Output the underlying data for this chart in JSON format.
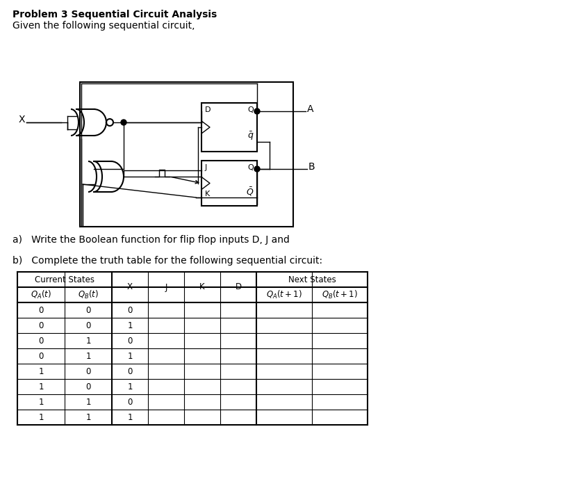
{
  "title": "Problem 3 Sequential Circuit Analysis",
  "subtitle": "Given the following sequential circuit,",
  "part_a": "a)   Write the Boolean function for flip flop inputs D, J and",
  "part_b": "b)   Complete the truth table for the following sequential circuit:",
  "table_data": [
    [
      "0",
      "0",
      "0",
      "",
      "",
      "",
      "",
      ""
    ],
    [
      "0",
      "0",
      "1",
      "",
      "",
      "",
      "",
      ""
    ],
    [
      "0",
      "1",
      "0",
      "",
      "",
      "",
      "",
      ""
    ],
    [
      "0",
      "1",
      "1",
      "",
      "",
      "",
      "",
      ""
    ],
    [
      "1",
      "0",
      "0",
      "",
      "",
      "",
      "",
      ""
    ],
    [
      "1",
      "0",
      "1",
      "",
      "",
      "",
      "",
      ""
    ],
    [
      "1",
      "1",
      "0",
      "",
      "",
      "",
      "",
      ""
    ],
    [
      "1",
      "1",
      "1",
      "",
      "",
      "",
      "",
      ""
    ]
  ],
  "bg_color": "#ffffff",
  "text_color": "#000000",
  "lw_thick": 1.5,
  "lw_thin": 1.0
}
